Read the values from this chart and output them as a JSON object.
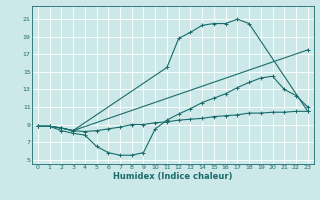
{
  "xlabel": "Humidex (Indice chaleur)",
  "ylabel": "",
  "xlim": [
    -0.5,
    23.5
  ],
  "ylim": [
    4.5,
    22.5
  ],
  "yticks": [
    5,
    7,
    9,
    11,
    13,
    15,
    17,
    19,
    21
  ],
  "xticks": [
    0,
    1,
    2,
    3,
    4,
    5,
    6,
    7,
    8,
    9,
    10,
    11,
    12,
    13,
    14,
    15,
    16,
    17,
    18,
    19,
    20,
    21,
    22,
    23
  ],
  "bg_color": "#cce8e8",
  "grid_color": "#b0d0d0",
  "line_color": "#1a6b6b",
  "line1_x": [
    0,
    1,
    2,
    3,
    11,
    12,
    13,
    14,
    15,
    16,
    17,
    18,
    23
  ],
  "line1_y": [
    8.8,
    8.8,
    8.6,
    8.3,
    15.5,
    18.8,
    19.5,
    20.3,
    20.5,
    20.5,
    21.0,
    20.5,
    10.5
  ],
  "line2_x": [
    0,
    1,
    2,
    3,
    23
  ],
  "line2_y": [
    8.8,
    8.8,
    8.6,
    8.3,
    17.5
  ],
  "line3_x": [
    0,
    1,
    2,
    3,
    4,
    5,
    6,
    7,
    8,
    9,
    10,
    11,
    12,
    13,
    14,
    15,
    16,
    17,
    18,
    19,
    20,
    21,
    22,
    23
  ],
  "line3_y": [
    8.8,
    8.8,
    8.3,
    8.0,
    7.8,
    6.5,
    5.8,
    5.5,
    5.5,
    5.8,
    8.5,
    9.5,
    10.2,
    10.8,
    11.5,
    12.0,
    12.5,
    13.2,
    13.8,
    14.3,
    14.5,
    13.0,
    12.3,
    11.0
  ],
  "line4_x": [
    0,
    1,
    2,
    3,
    4,
    5,
    6,
    7,
    8,
    9,
    10,
    11,
    12,
    13,
    14,
    15,
    16,
    17,
    18,
    19,
    20,
    21,
    22,
    23
  ],
  "line4_y": [
    8.8,
    8.8,
    8.6,
    8.3,
    8.2,
    8.3,
    8.5,
    8.7,
    9.0,
    9.0,
    9.2,
    9.3,
    9.5,
    9.6,
    9.7,
    9.9,
    10.0,
    10.1,
    10.3,
    10.3,
    10.4,
    10.4,
    10.5,
    10.5
  ],
  "marker": "+",
  "markersize": 3,
  "linewidth": 0.8
}
